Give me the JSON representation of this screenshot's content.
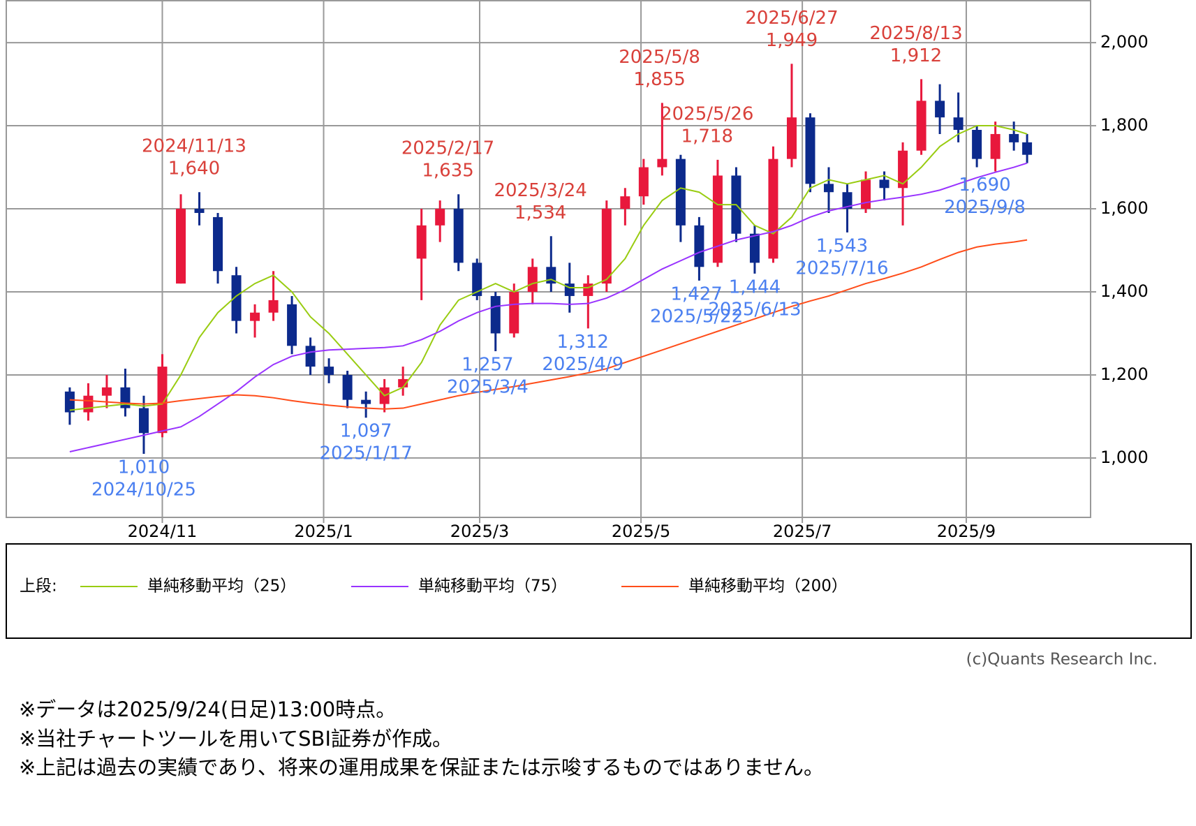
{
  "chart_data": {
    "type": "candlestick",
    "x": [
      "2024/9/27",
      "2024/10/4",
      "2024/10/11",
      "2024/10/18",
      "2024/10/25",
      "2024/11/1",
      "2024/11/8",
      "2024/11/15",
      "2024/11/22",
      "2024/11/29",
      "2024/12/6",
      "2024/12/13",
      "2024/12/20",
      "2024/12/27",
      "2025/1/3",
      "2025/1/10",
      "2025/1/17",
      "2025/1/24",
      "2025/1/31",
      "2025/2/7",
      "2025/2/14",
      "2025/2/21",
      "2025/2/28",
      "2025/3/7",
      "2025/3/14",
      "2025/3/21",
      "2025/3/28",
      "2025/4/4",
      "2025/4/11",
      "2025/4/18",
      "2025/4/25",
      "2025/5/2",
      "2025/5/9",
      "2025/5/16",
      "2025/5/23",
      "2025/5/30",
      "2025/6/6",
      "2025/6/13",
      "2025/6/20",
      "2025/6/27",
      "2025/7/4",
      "2025/7/11",
      "2025/7/18",
      "2025/7/25",
      "2025/8/1",
      "2025/8/8",
      "2025/8/15",
      "2025/8/22",
      "2025/8/29",
      "2025/9/5",
      "2025/9/12",
      "2025/9/19",
      "2025/9/24"
    ],
    "open": [
      1160,
      1110,
      1150,
      1170,
      1120,
      1060,
      1420,
      1600,
      1580,
      1440,
      1330,
      1350,
      1370,
      1270,
      1220,
      1200,
      1140,
      1130,
      1170,
      1480,
      1560,
      1600,
      1470,
      1390,
      1300,
      1400,
      1460,
      1420,
      1390,
      1420,
      1600,
      1630,
      1700,
      1720,
      1560,
      1470,
      1680,
      1540,
      1480,
      1720,
      1820,
      1660,
      1640,
      1600,
      1670,
      1650,
      1740,
      1860,
      1820,
      1790,
      1720,
      1780,
      1760
    ],
    "high": [
      1170,
      1180,
      1200,
      1215,
      1150,
      1250,
      1635,
      1640,
      1590,
      1460,
      1370,
      1450,
      1390,
      1290,
      1240,
      1210,
      1160,
      1190,
      1220,
      1600,
      1620,
      1635,
      1480,
      1400,
      1420,
      1480,
      1534,
      1470,
      1440,
      1620,
      1650,
      1720,
      1855,
      1730,
      1580,
      1718,
      1700,
      1560,
      1750,
      1949,
      1830,
      1700,
      1660,
      1690,
      1690,
      1760,
      1912,
      1900,
      1880,
      1800,
      1810,
      1810,
      1780
    ],
    "low": [
      1080,
      1090,
      1120,
      1100,
      1010,
      1050,
      1420,
      1560,
      1420,
      1300,
      1290,
      1330,
      1250,
      1200,
      1180,
      1120,
      1097,
      1110,
      1150,
      1380,
      1520,
      1450,
      1380,
      1257,
      1290,
      1370,
      1400,
      1350,
      1312,
      1400,
      1560,
      1610,
      1680,
      1520,
      1427,
      1460,
      1520,
      1444,
      1470,
      1700,
      1640,
      1590,
      1543,
      1590,
      1620,
      1560,
      1730,
      1780,
      1760,
      1700,
      1690,
      1740,
      1710
    ],
    "close": [
      1110,
      1150,
      1170,
      1120,
      1060,
      1220,
      1600,
      1590,
      1450,
      1330,
      1350,
      1380,
      1270,
      1220,
      1200,
      1140,
      1130,
      1170,
      1190,
      1560,
      1600,
      1470,
      1390,
      1300,
      1400,
      1460,
      1420,
      1390,
      1420,
      1600,
      1630,
      1700,
      1720,
      1560,
      1460,
      1680,
      1540,
      1470,
      1720,
      1820,
      1660,
      1640,
      1600,
      1670,
      1650,
      1740,
      1860,
      1820,
      1790,
      1720,
      1780,
      1760,
      1730
    ],
    "up_color": "#e8183c",
    "down_color": "#0c2a8c",
    "series": [
      {
        "name": "単純移動平均（25）",
        "color": "#99cc11",
        "values": [
          1115,
          1120,
          1125,
          1130,
          1125,
          1130,
          1200,
          1290,
          1350,
          1390,
          1420,
          1440,
          1400,
          1340,
          1300,
          1250,
          1200,
          1150,
          1170,
          1230,
          1320,
          1380,
          1400,
          1420,
          1400,
          1420,
          1430,
          1410,
          1410,
          1430,
          1480,
          1560,
          1620,
          1650,
          1640,
          1610,
          1610,
          1560,
          1540,
          1580,
          1650,
          1670,
          1660,
          1670,
          1680,
          1660,
          1700,
          1750,
          1780,
          1800,
          1800,
          1790,
          1780
        ]
      },
      {
        "name": "単純移動平均（75）",
        "color": "#9933ff",
        "values": [
          1015,
          1025,
          1035,
          1045,
          1055,
          1065,
          1075,
          1100,
          1130,
          1160,
          1195,
          1225,
          1245,
          1255,
          1260,
          1262,
          1264,
          1266,
          1270,
          1285,
          1305,
          1330,
          1350,
          1365,
          1370,
          1372,
          1372,
          1370,
          1372,
          1385,
          1405,
          1430,
          1455,
          1475,
          1495,
          1510,
          1525,
          1535,
          1545,
          1560,
          1580,
          1595,
          1605,
          1615,
          1622,
          1628,
          1635,
          1645,
          1660,
          1675,
          1688,
          1700,
          1710
        ]
      },
      {
        "name": "単純移動平均（200）",
        "color": "#ff4d1a",
        "values": [
          1140,
          1138,
          1135,
          1132,
          1130,
          1132,
          1138,
          1143,
          1148,
          1152,
          1150,
          1145,
          1138,
          1132,
          1127,
          1123,
          1120,
          1118,
          1120,
          1130,
          1140,
          1150,
          1158,
          1165,
          1172,
          1180,
          1188,
          1196,
          1205,
          1215,
          1230,
          1245,
          1260,
          1275,
          1290,
          1305,
          1320,
          1335,
          1350,
          1365,
          1378,
          1390,
          1405,
          1420,
          1432,
          1445,
          1460,
          1478,
          1495,
          1508,
          1515,
          1520,
          1525
        ]
      }
    ],
    "annotations": [
      {
        "date": "2024/11/13",
        "value": 1640,
        "value_label": "1,640",
        "kind": "high"
      },
      {
        "date": "2025/2/17",
        "value": 1635,
        "value_label": "1,635",
        "kind": "high"
      },
      {
        "date": "2025/3/24",
        "value": 1534,
        "value_label": "1,534",
        "kind": "high"
      },
      {
        "date": "2025/5/8",
        "value": 1855,
        "value_label": "1,855",
        "kind": "high"
      },
      {
        "date": "2025/5/26",
        "value": 1718,
        "value_label": "1,718",
        "kind": "high"
      },
      {
        "date": "2025/6/27",
        "value": 1949,
        "value_label": "1,949",
        "kind": "high"
      },
      {
        "date": "2025/8/13",
        "value": 1912,
        "value_label": "1,912",
        "kind": "high"
      },
      {
        "date": "2024/10/25",
        "value": 1010,
        "value_label": "1,010",
        "kind": "low"
      },
      {
        "date": "2025/1/17",
        "value": 1097,
        "value_label": "1,097",
        "kind": "low"
      },
      {
        "date": "2025/3/4",
        "value": 1257,
        "value_label": "1,257",
        "kind": "low"
      },
      {
        "date": "2025/4/9",
        "value": 1312,
        "value_label": "1,312",
        "kind": "low"
      },
      {
        "date": "2025/5/22",
        "value": 1427,
        "value_label": "1,427",
        "kind": "low"
      },
      {
        "date": "2025/6/13",
        "value": 1444,
        "value_label": "1,444",
        "kind": "low"
      },
      {
        "date": "2025/7/16",
        "value": 1543,
        "value_label": "1,543",
        "kind": "low"
      },
      {
        "date": "2025/9/8",
        "value": 1690,
        "value_label": "1,690",
        "kind": "low"
      }
    ],
    "high_color": "#d9403a",
    "low_color": "#4a7ff0",
    "xlim": [
      "2024/9/3",
      "2025/10/18"
    ],
    "xticks": [
      {
        "value": "2024/11/1",
        "label": "2024/11"
      },
      {
        "value": "2025/1/1",
        "label": "2025/1"
      },
      {
        "value": "2025/3/1",
        "label": "2025/3"
      },
      {
        "value": "2025/5/1",
        "label": "2025/5"
      },
      {
        "value": "2025/7/1",
        "label": "2025/7"
      },
      {
        "value": "2025/9/1",
        "label": "2025/9"
      }
    ],
    "ylim": [
      857,
      2101
    ],
    "yticks": [
      {
        "value": 1000,
        "label": "1,000"
      },
      {
        "value": 1200,
        "label": "1,200"
      },
      {
        "value": 1400,
        "label": "1,400"
      },
      {
        "value": 1600,
        "label": "1,600"
      },
      {
        "value": 1800,
        "label": "1,800"
      },
      {
        "value": 2000,
        "label": "2,000"
      }
    ],
    "grid": true,
    "legend_label": "上段:",
    "credit": "(c)Quants Research Inc.",
    "notes": [
      "※データは2025/9/24(日足)13:00時点。",
      "※当社チャートツールを用いてSBI証券が作成。",
      "※上記は過去の実績であり、将来の運用成果を保証または示唆するものではありません。"
    ]
  }
}
